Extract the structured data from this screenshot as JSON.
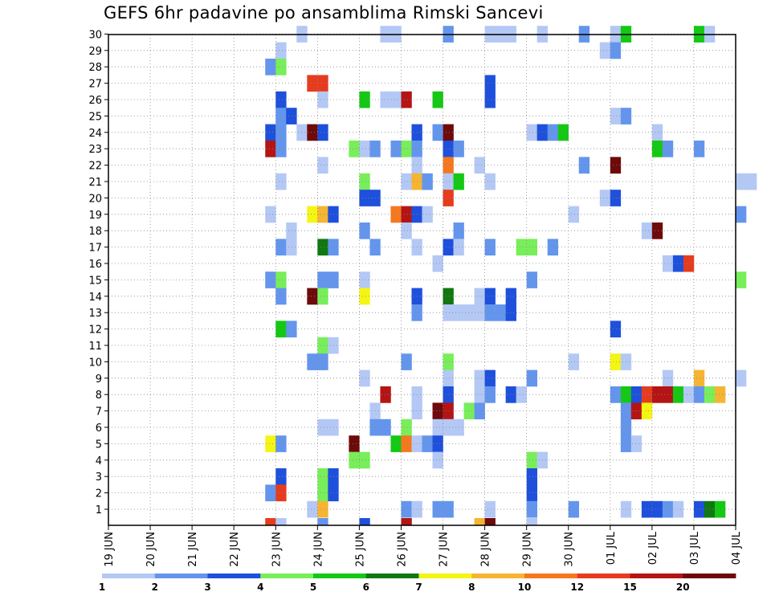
{
  "chart_data": {
    "type": "heatmap",
    "title": "GEFS 6hr padavine po ansamblima Rimski Sancevi",
    "y_ticks": [
      "1",
      "2",
      "3",
      "4",
      "5",
      "6",
      "7",
      "8",
      "9",
      "10",
      "11",
      "12",
      "13",
      "14",
      "15",
      "16",
      "17",
      "18",
      "19",
      "20",
      "21",
      "22",
      "23",
      "24",
      "25",
      "26",
      "27",
      "28",
      "29",
      "30"
    ],
    "x_ticks": [
      "19 JUN",
      "20 JUN",
      "21 JUN",
      "22 JUN",
      "23 JUN",
      "24 JUN",
      "25 JUN",
      "26 JUN",
      "27 JUN",
      "28 JUN",
      "29 JUN",
      "30 JUN",
      "01 JUL",
      "02 JUL",
      "03 JUL",
      "04 JUL"
    ],
    "legend": {
      "colors": [
        "#b4c8f5",
        "#6495ed",
        "#1e50dc",
        "#78ee5a",
        "#14c814",
        "#107810",
        "#f5f514",
        "#f5b432",
        "#f5781e",
        "#e63c1e",
        "#b41414",
        "#6e0a0a"
      ],
      "labels": [
        "1",
        "2",
        "3",
        "4",
        "5",
        "6",
        "7",
        "8",
        "10",
        "12",
        "15",
        "20"
      ]
    },
    "members": 30,
    "cells": [
      [
        30,
        18,
        1
      ],
      [
        30,
        26,
        1
      ],
      [
        30,
        27,
        1
      ],
      [
        30,
        32,
        2
      ],
      [
        30,
        36,
        1
      ],
      [
        30,
        37,
        1
      ],
      [
        30,
        38,
        1
      ],
      [
        30,
        41,
        1
      ],
      [
        30,
        45,
        2
      ],
      [
        30,
        48,
        1
      ],
      [
        30,
        49,
        5
      ],
      [
        30,
        56,
        5
      ],
      [
        30,
        57,
        1
      ],
      [
        29,
        16,
        1
      ],
      [
        29,
        47,
        1
      ],
      [
        29,
        48,
        2
      ],
      [
        28,
        15,
        2
      ],
      [
        28,
        16,
        4
      ],
      [
        27,
        19,
        10
      ],
      [
        27,
        20,
        10
      ],
      [
        27,
        36,
        3
      ],
      [
        26,
        16,
        3
      ],
      [
        26,
        20,
        1
      ],
      [
        26,
        24,
        5
      ],
      [
        26,
        26,
        1
      ],
      [
        26,
        27,
        1
      ],
      [
        26,
        28,
        11
      ],
      [
        26,
        31,
        5
      ],
      [
        26,
        36,
        3
      ],
      [
        25,
        16,
        2
      ],
      [
        25,
        17,
        3
      ],
      [
        25,
        48,
        1
      ],
      [
        25,
        49,
        2
      ],
      [
        24,
        15,
        3
      ],
      [
        24,
        16,
        2
      ],
      [
        24,
        18,
        1
      ],
      [
        24,
        19,
        12
      ],
      [
        24,
        20,
        3
      ],
      [
        24,
        29,
        3
      ],
      [
        24,
        31,
        2
      ],
      [
        24,
        32,
        12
      ],
      [
        24,
        40,
        1
      ],
      [
        24,
        41,
        3
      ],
      [
        24,
        42,
        2
      ],
      [
        24,
        43,
        5
      ],
      [
        24,
        52,
        1
      ],
      [
        23,
        15,
        11
      ],
      [
        23,
        16,
        2
      ],
      [
        23,
        23,
        4
      ],
      [
        23,
        24,
        1
      ],
      [
        23,
        25,
        2
      ],
      [
        23,
        27,
        2
      ],
      [
        23,
        28,
        4
      ],
      [
        23,
        29,
        2
      ],
      [
        23,
        32,
        3
      ],
      [
        23,
        33,
        2
      ],
      [
        23,
        52,
        5
      ],
      [
        23,
        53,
        2
      ],
      [
        23,
        56,
        2
      ],
      [
        22,
        20,
        1
      ],
      [
        22,
        29,
        1
      ],
      [
        22,
        32,
        9
      ],
      [
        22,
        35,
        1
      ],
      [
        22,
        45,
        2
      ],
      [
        22,
        48,
        12
      ],
      [
        21,
        16,
        1
      ],
      [
        21,
        24,
        4
      ],
      [
        21,
        28,
        1
      ],
      [
        21,
        29,
        8
      ],
      [
        21,
        30,
        2
      ],
      [
        21,
        32,
        1
      ],
      [
        21,
        33,
        5
      ],
      [
        21,
        36,
        1
      ],
      [
        21,
        60,
        1
      ],
      [
        21,
        61,
        1
      ],
      [
        20,
        24,
        3
      ],
      [
        20,
        25,
        3
      ],
      [
        20,
        32,
        10
      ],
      [
        20,
        47,
        1
      ],
      [
        20,
        48,
        3
      ],
      [
        19,
        15,
        1
      ],
      [
        19,
        19,
        7
      ],
      [
        19,
        20,
        8
      ],
      [
        19,
        21,
        3
      ],
      [
        19,
        27,
        9
      ],
      [
        19,
        28,
        11
      ],
      [
        19,
        29,
        3
      ],
      [
        19,
        30,
        1
      ],
      [
        19,
        44,
        1
      ],
      [
        19,
        60,
        2
      ],
      [
        18,
        17,
        1
      ],
      [
        18,
        24,
        2
      ],
      [
        18,
        28,
        1
      ],
      [
        18,
        33,
        2
      ],
      [
        18,
        51,
        1
      ],
      [
        18,
        52,
        12
      ],
      [
        17,
        16,
        2
      ],
      [
        17,
        17,
        1
      ],
      [
        17,
        20,
        6
      ],
      [
        17,
        21,
        2
      ],
      [
        17,
        25,
        2
      ],
      [
        17,
        29,
        1
      ],
      [
        17,
        32,
        3
      ],
      [
        17,
        33,
        1
      ],
      [
        17,
        36,
        2
      ],
      [
        17,
        39,
        4
      ],
      [
        17,
        40,
        4
      ],
      [
        17,
        42,
        2
      ],
      [
        16,
        31,
        1
      ],
      [
        16,
        53,
        1
      ],
      [
        16,
        54,
        3
      ],
      [
        16,
        55,
        10
      ],
      [
        15,
        15,
        2
      ],
      [
        15,
        16,
        4
      ],
      [
        15,
        20,
        2
      ],
      [
        15,
        21,
        2
      ],
      [
        15,
        24,
        1
      ],
      [
        15,
        40,
        2
      ],
      [
        15,
        60,
        4
      ],
      [
        14,
        16,
        2
      ],
      [
        14,
        19,
        12
      ],
      [
        14,
        20,
        4
      ],
      [
        14,
        24,
        7
      ],
      [
        14,
        29,
        3
      ],
      [
        14,
        32,
        6
      ],
      [
        14,
        35,
        1
      ],
      [
        14,
        36,
        3
      ],
      [
        14,
        38,
        3
      ],
      [
        13,
        29,
        2
      ],
      [
        13,
        32,
        1
      ],
      [
        13,
        33,
        1
      ],
      [
        13,
        34,
        1
      ],
      [
        13,
        35,
        1
      ],
      [
        13,
        36,
        2
      ],
      [
        13,
        37,
        2
      ],
      [
        13,
        38,
        3
      ],
      [
        12,
        16,
        5
      ],
      [
        12,
        17,
        2
      ],
      [
        12,
        48,
        3
      ],
      [
        11,
        20,
        4
      ],
      [
        11,
        21,
        1
      ],
      [
        10,
        19,
        2
      ],
      [
        10,
        20,
        2
      ],
      [
        10,
        28,
        2
      ],
      [
        10,
        32,
        4
      ],
      [
        10,
        44,
        1
      ],
      [
        10,
        48,
        7
      ],
      [
        10,
        49,
        1
      ],
      [
        9,
        24,
        1
      ],
      [
        9,
        32,
        1
      ],
      [
        9,
        35,
        1
      ],
      [
        9,
        36,
        3
      ],
      [
        9,
        40,
        2
      ],
      [
        9,
        53,
        1
      ],
      [
        9,
        56,
        8
      ],
      [
        9,
        60,
        1
      ],
      [
        8,
        26,
        11
      ],
      [
        8,
        29,
        1
      ],
      [
        8,
        32,
        3
      ],
      [
        8,
        35,
        1
      ],
      [
        8,
        36,
        2
      ],
      [
        8,
        38,
        3
      ],
      [
        8,
        39,
        1
      ],
      [
        8,
        48,
        2
      ],
      [
        8,
        49,
        5
      ],
      [
        8,
        50,
        3
      ],
      [
        8,
        51,
        10
      ],
      [
        8,
        52,
        11
      ],
      [
        8,
        53,
        11
      ],
      [
        8,
        54,
        5
      ],
      [
        8,
        55,
        1
      ],
      [
        8,
        56,
        2
      ],
      [
        8,
        57,
        4
      ],
      [
        8,
        58,
        8
      ],
      [
        7,
        25,
        1
      ],
      [
        7,
        29,
        1
      ],
      [
        7,
        31,
        12
      ],
      [
        7,
        32,
        11
      ],
      [
        7,
        34,
        4
      ],
      [
        7,
        35,
        2
      ],
      [
        7,
        49,
        2
      ],
      [
        7,
        50,
        11
      ],
      [
        7,
        51,
        7
      ],
      [
        6,
        20,
        1
      ],
      [
        6,
        21,
        1
      ],
      [
        6,
        25,
        2
      ],
      [
        6,
        26,
        2
      ],
      [
        6,
        28,
        4
      ],
      [
        6,
        31,
        1
      ],
      [
        6,
        32,
        1
      ],
      [
        6,
        33,
        1
      ],
      [
        6,
        49,
        2
      ],
      [
        5,
        15,
        7
      ],
      [
        5,
        16,
        2
      ],
      [
        5,
        23,
        12
      ],
      [
        5,
        27,
        5
      ],
      [
        5,
        28,
        9
      ],
      [
        5,
        29,
        1
      ],
      [
        5,
        30,
        2
      ],
      [
        5,
        31,
        3
      ],
      [
        5,
        49,
        2
      ],
      [
        5,
        50,
        1
      ],
      [
        4,
        23,
        4
      ],
      [
        4,
        24,
        4
      ],
      [
        4,
        31,
        1
      ],
      [
        4,
        40,
        4
      ],
      [
        4,
        41,
        1
      ],
      [
        3,
        16,
        3
      ],
      [
        3,
        20,
        4
      ],
      [
        3,
        21,
        3
      ],
      [
        3,
        40,
        3
      ],
      [
        2,
        15,
        2
      ],
      [
        2,
        16,
        10
      ],
      [
        2,
        20,
        4
      ],
      [
        2,
        21,
        3
      ],
      [
        2,
        40,
        3
      ],
      [
        1,
        19,
        1
      ],
      [
        1,
        20,
        8
      ],
      [
        1,
        28,
        2
      ],
      [
        1,
        29,
        1
      ],
      [
        1,
        31,
        2
      ],
      [
        1,
        32,
        2
      ],
      [
        1,
        36,
        1
      ],
      [
        1,
        40,
        2
      ],
      [
        1,
        44,
        2
      ],
      [
        1,
        49,
        1
      ],
      [
        1,
        51,
        3
      ],
      [
        1,
        52,
        3
      ],
      [
        1,
        53,
        2
      ],
      [
        1,
        54,
        1
      ],
      [
        1,
        56,
        3
      ],
      [
        1,
        57,
        6
      ],
      [
        1,
        58,
        5
      ],
      [
        0,
        15,
        10
      ],
      [
        0,
        16,
        1
      ],
      [
        0,
        20,
        2
      ],
      [
        0,
        24,
        3
      ],
      [
        0,
        28,
        11
      ],
      [
        0,
        35,
        8
      ],
      [
        0,
        36,
        12
      ],
      [
        0,
        40,
        1
      ]
    ]
  }
}
